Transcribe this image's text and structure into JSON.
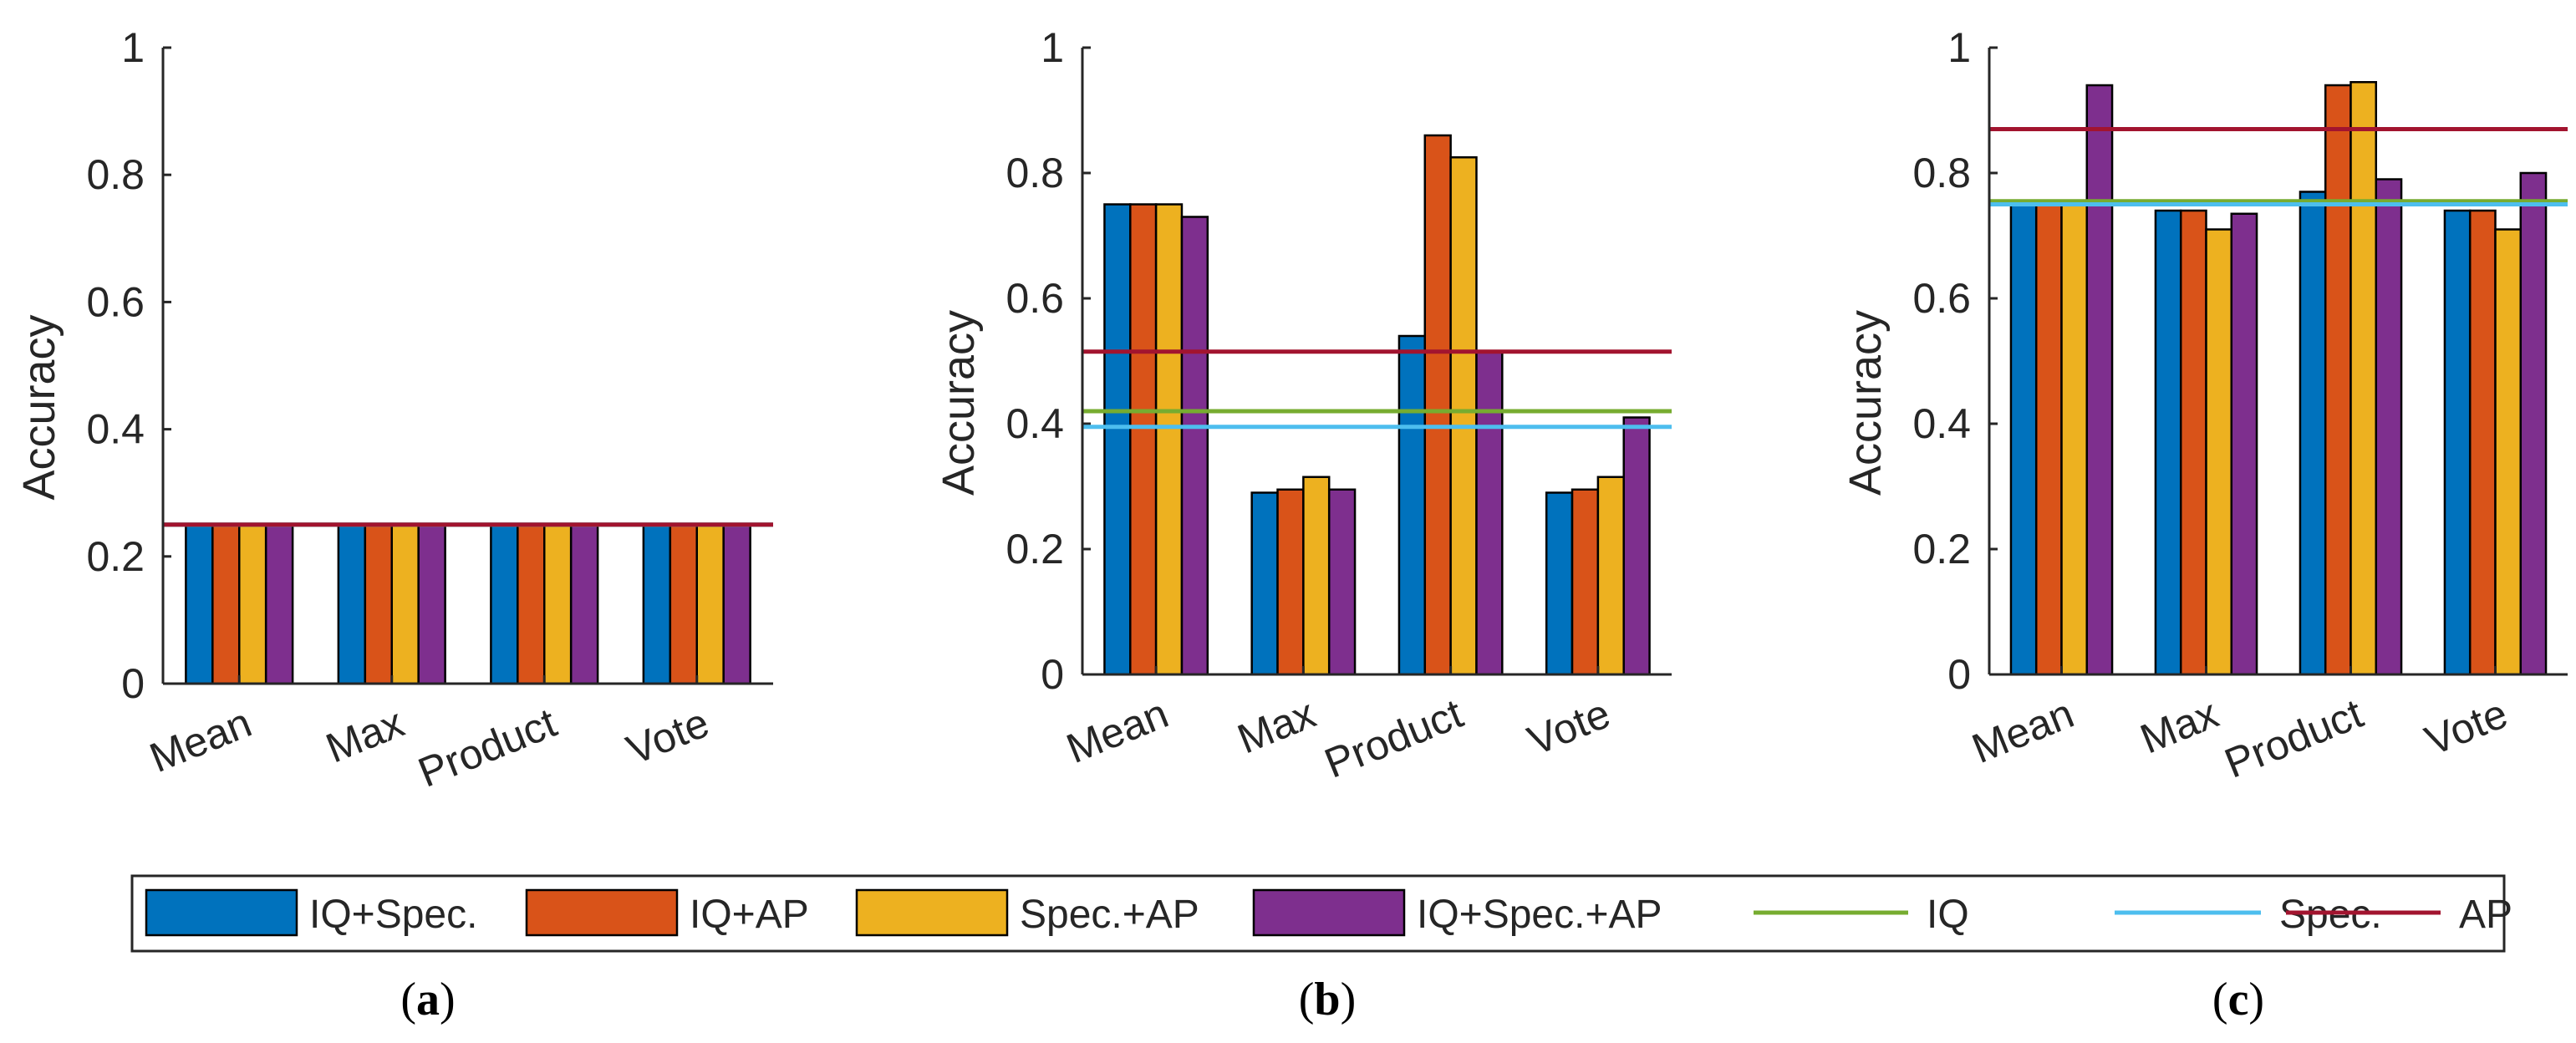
{
  "colors": {
    "iq_spec": "#0072BD",
    "iq_ap": "#D95319",
    "spec_ap": "#EDB120",
    "iq_spec_ap": "#7E2F8E",
    "iq": "#77AC30",
    "spec": "#4DBEEE",
    "ap": "#A2142F",
    "axis": "#262626"
  },
  "chart_data": [
    {
      "type": "bar",
      "panel_label": "a",
      "ylabel": "Accuracy",
      "ylim": [
        0,
        1
      ],
      "yticks": [
        "0",
        "0.2",
        "0.4",
        "0.6",
        "0.8",
        "1"
      ],
      "categories": [
        "Mean",
        "Max",
        "Product",
        "Vote"
      ],
      "series": [
        {
          "name": "IQ+Spec.",
          "values": [
            0.25,
            0.25,
            0.25,
            0.25
          ]
        },
        {
          "name": "IQ+AP",
          "values": [
            0.25,
            0.25,
            0.25,
            0.25
          ]
        },
        {
          "name": "Spec.+AP",
          "values": [
            0.25,
            0.25,
            0.25,
            0.25
          ]
        },
        {
          "name": "IQ+Spec.+AP",
          "values": [
            0.25,
            0.25,
            0.25,
            0.25
          ]
        }
      ],
      "reference_lines": [
        {
          "name": "IQ",
          "value": 0.25
        },
        {
          "name": "Spec.",
          "value": 0.25
        },
        {
          "name": "AP",
          "value": 0.25
        }
      ]
    },
    {
      "type": "bar",
      "panel_label": "b",
      "ylabel": "Accuracy",
      "ylim": [
        0,
        1
      ],
      "yticks": [
        "0",
        "0.2",
        "0.4",
        "0.6",
        "0.8",
        "1"
      ],
      "categories": [
        "Mean",
        "Max",
        "Product",
        "Vote"
      ],
      "series": [
        {
          "name": "IQ+Spec.",
          "values": [
            0.75,
            0.29,
            0.54,
            0.29
          ]
        },
        {
          "name": "IQ+AP",
          "values": [
            0.75,
            0.295,
            0.86,
            0.295
          ]
        },
        {
          "name": "Spec.+AP",
          "values": [
            0.75,
            0.315,
            0.825,
            0.315
          ]
        },
        {
          "name": "IQ+Spec.+AP",
          "values": [
            0.73,
            0.295,
            0.515,
            0.41
          ]
        }
      ],
      "reference_lines": [
        {
          "name": "IQ",
          "value": 0.42
        },
        {
          "name": "Spec.",
          "value": 0.395
        },
        {
          "name": "AP",
          "value": 0.515
        }
      ]
    },
    {
      "type": "bar",
      "panel_label": "c",
      "ylabel": "Accuracy",
      "ylim": [
        0,
        1
      ],
      "yticks": [
        "0",
        "0.2",
        "0.4",
        "0.6",
        "0.8",
        "1"
      ],
      "categories": [
        "Mean",
        "Max",
        "Product",
        "Vote"
      ],
      "series": [
        {
          "name": "IQ+Spec.",
          "values": [
            0.75,
            0.74,
            0.77,
            0.74
          ]
        },
        {
          "name": "IQ+AP",
          "values": [
            0.75,
            0.74,
            0.94,
            0.74
          ]
        },
        {
          "name": "Spec.+AP",
          "values": [
            0.75,
            0.71,
            0.945,
            0.71
          ]
        },
        {
          "name": "IQ+Spec.+AP",
          "values": [
            0.94,
            0.735,
            0.79,
            0.8
          ]
        }
      ],
      "reference_lines": [
        {
          "name": "IQ",
          "value": 0.755
        },
        {
          "name": "Spec.",
          "value": 0.75
        },
        {
          "name": "AP",
          "value": 0.87
        }
      ]
    }
  ],
  "legend": [
    {
      "label": "IQ+Spec.",
      "kind": "bar",
      "color_key": "iq_spec"
    },
    {
      "label": "IQ+AP",
      "kind": "bar",
      "color_key": "iq_ap"
    },
    {
      "label": "Spec.+AP",
      "kind": "bar",
      "color_key": "spec_ap"
    },
    {
      "label": "IQ+Spec.+AP",
      "kind": "bar",
      "color_key": "iq_spec_ap"
    },
    {
      "label": "IQ",
      "kind": "line",
      "color_key": "iq"
    },
    {
      "label": "Spec.",
      "kind": "line",
      "color_key": "spec"
    },
    {
      "label": "AP",
      "kind": "line",
      "color_key": "ap"
    }
  ]
}
